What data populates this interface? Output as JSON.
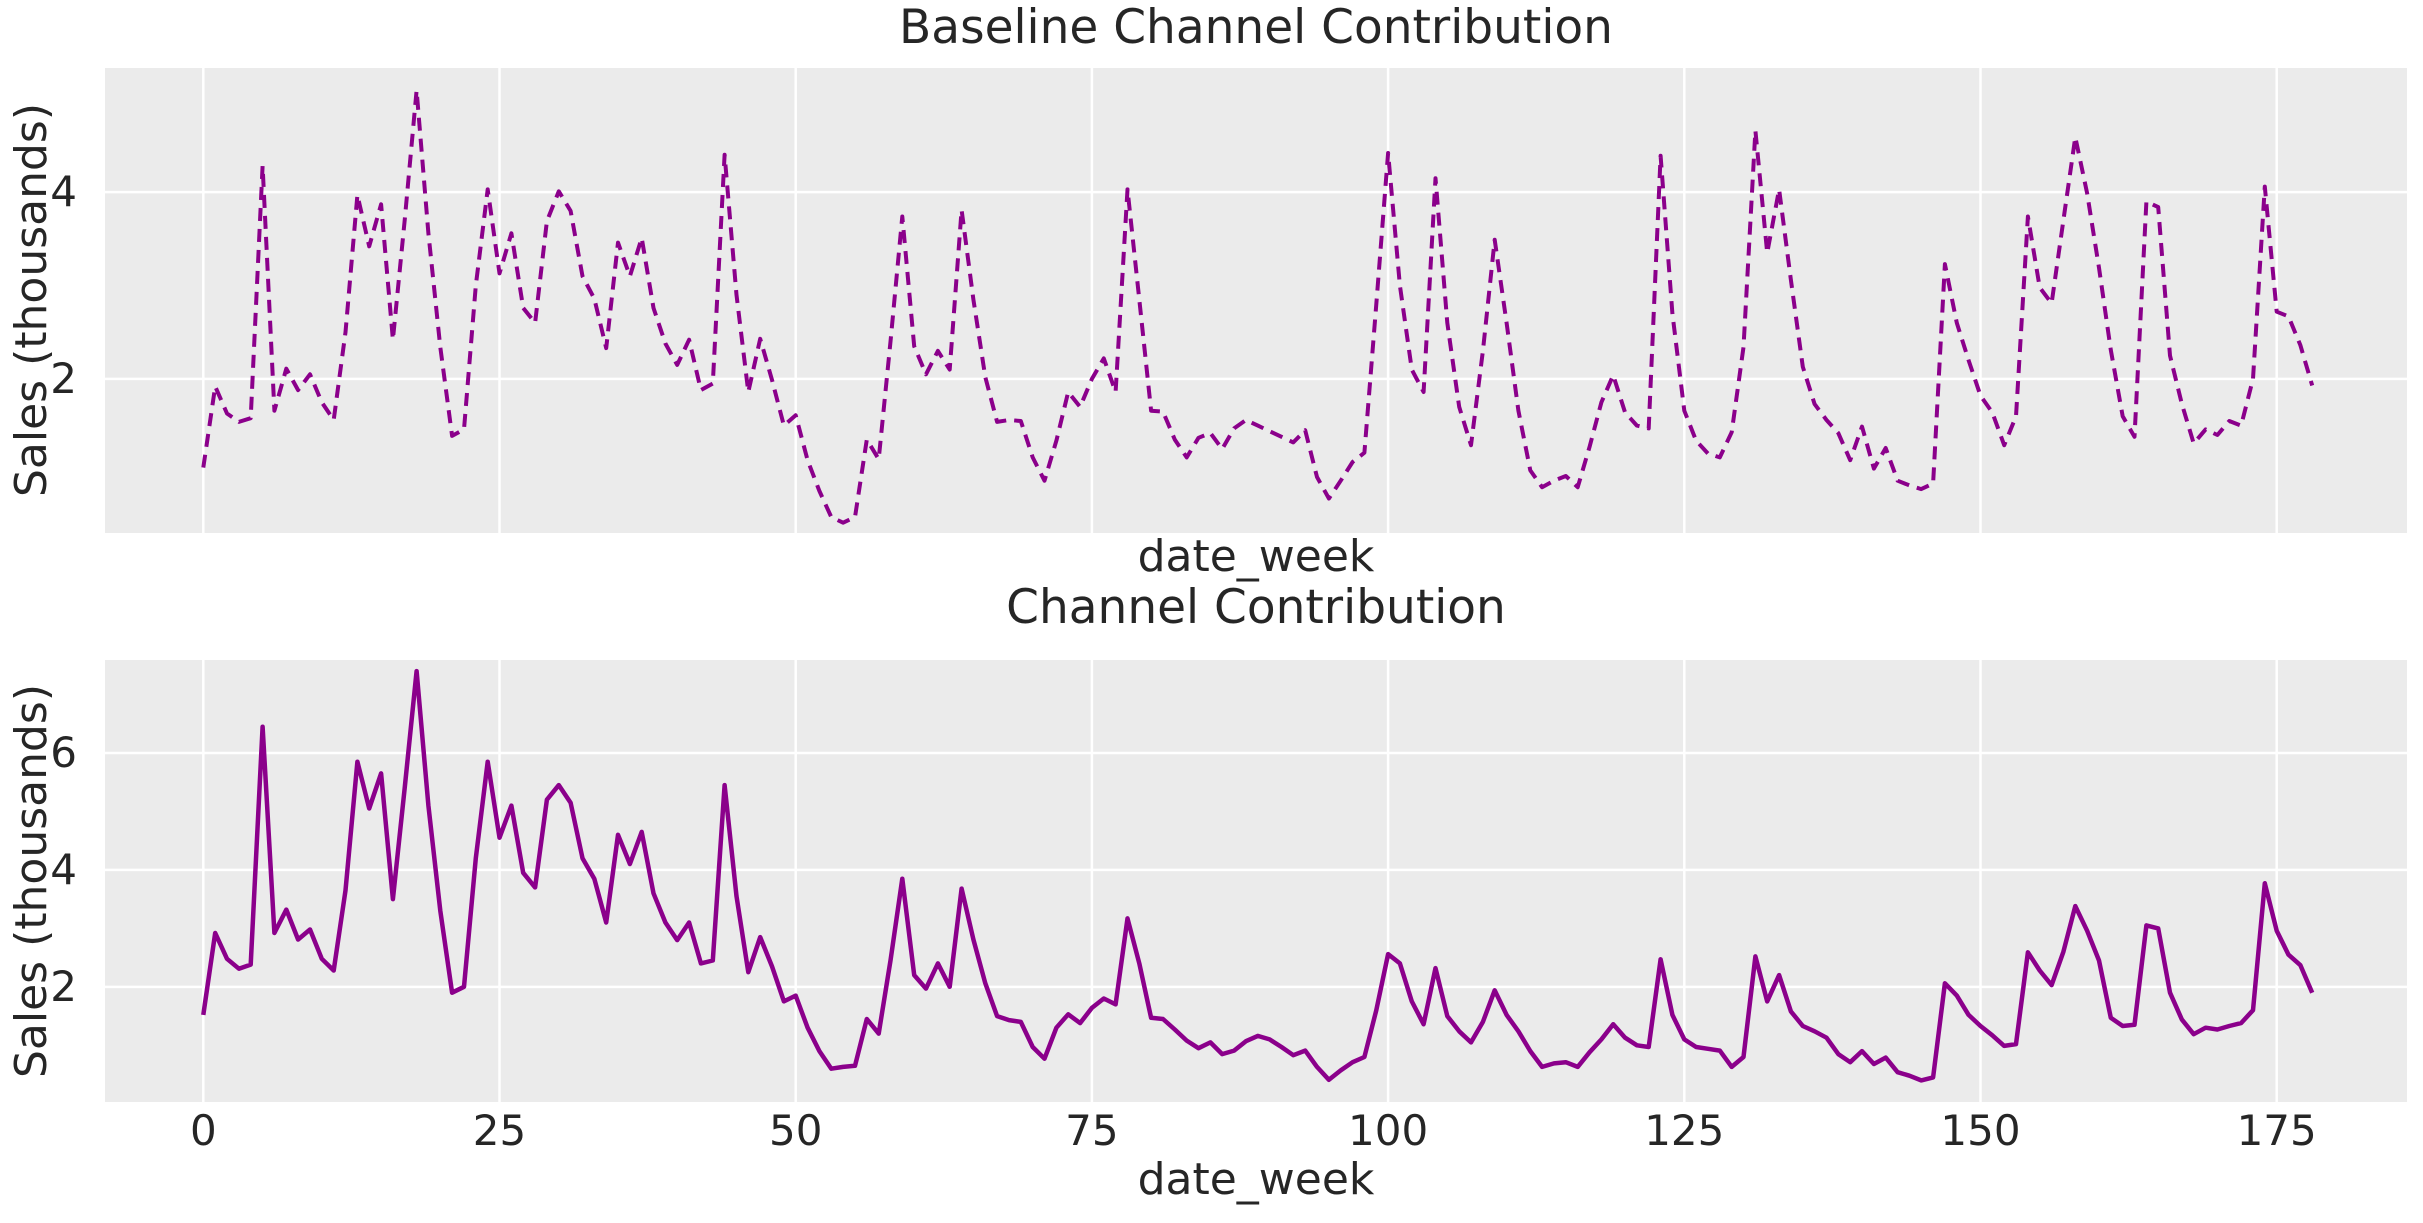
{
  "figure": {
    "background_color": "#ffffff",
    "plot_background_color": "#ebebeb",
    "grid_color": "#ffffff",
    "text_color": "#262626",
    "series_color": "#8b008b"
  },
  "chart_data": [
    {
      "type": "line",
      "title": "Baseline Channel Contribution",
      "xlabel": "date_week",
      "ylabel": "Sales (thousands)",
      "line_style": "dashed",
      "color": "#8b008b",
      "legend": null,
      "grid": true,
      "x_start": 0,
      "x_step": 1,
      "xlim": [
        -8.3,
        186.0
      ],
      "ylim": [
        0.35,
        5.33
      ],
      "yticks": [
        2,
        4
      ],
      "xticks": [],
      "grid_xticks": [
        0,
        25,
        50,
        75,
        100,
        125,
        150,
        175
      ],
      "values": [
        1.05,
        1.92,
        1.63,
        1.54,
        1.58,
        4.28,
        1.66,
        2.11,
        1.88,
        2.05,
        1.75,
        1.56,
        2.5,
        3.97,
        3.42,
        3.87,
        2.42,
        3.7,
        5.09,
        3.56,
        2.34,
        1.39,
        1.46,
        3.0,
        4.03,
        3.13,
        3.56,
        2.76,
        2.6,
        3.69,
        4.01,
        3.8,
        3.1,
        2.86,
        2.33,
        3.46,
        3.1,
        3.51,
        2.76,
        2.38,
        2.15,
        2.42,
        1.88,
        1.95,
        4.4,
        2.9,
        1.86,
        2.43,
        1.99,
        1.5,
        1.61,
        1.13,
        0.8,
        0.52,
        0.46,
        0.52,
        1.35,
        1.14,
        2.4,
        3.74,
        2.35,
        2.05,
        2.3,
        2.1,
        3.81,
        2.85,
        2.02,
        1.54,
        1.56,
        1.55,
        1.16,
        0.91,
        1.34,
        1.86,
        1.7,
        2.0,
        2.22,
        1.86,
        4.03,
        2.85,
        1.66,
        1.65,
        1.35,
        1.16,
        1.37,
        1.42,
        1.25,
        1.47,
        1.56,
        1.5,
        1.44,
        1.38,
        1.32,
        1.45,
        0.95,
        0.72,
        0.91,
        1.11,
        1.21,
        2.8,
        4.42,
        3.0,
        2.1,
        1.86,
        4.15,
        2.6,
        1.7,
        1.29,
        2.3,
        3.49,
        2.6,
        1.66,
        1.02,
        0.84,
        0.91,
        0.96,
        0.84,
        1.27,
        1.75,
        2.04,
        1.64,
        1.5,
        1.47,
        4.39,
        2.7,
        1.66,
        1.34,
        1.2,
        1.16,
        1.43,
        2.34,
        4.66,
        3.35,
        4.03,
        3.06,
        2.13,
        1.73,
        1.56,
        1.42,
        1.13,
        1.49,
        1.04,
        1.26,
        0.91,
        0.86,
        0.82,
        0.88,
        3.23,
        2.6,
        2.2,
        1.82,
        1.64,
        1.29,
        1.6,
        3.74,
        2.98,
        2.81,
        3.7,
        4.59,
        3.99,
        3.19,
        2.31,
        1.6,
        1.38,
        3.9,
        3.84,
        2.25,
        1.73,
        1.31,
        1.46,
        1.4,
        1.55,
        1.5,
        2.0,
        4.06,
        2.72,
        2.67,
        2.36,
        1.93
      ]
    },
    {
      "type": "line",
      "title": "Channel Contribution",
      "xlabel": "date_week",
      "ylabel": "Sales (thousands)",
      "line_style": "solid",
      "color": "#8b008b",
      "legend": null,
      "grid": true,
      "x_start": 0,
      "x_step": 1,
      "xlim": [
        -8.3,
        186.0
      ],
      "ylim": [
        0.03,
        7.59
      ],
      "yticks": [
        2,
        4,
        6
      ],
      "xticks": [
        0,
        25,
        50,
        75,
        100,
        125,
        150,
        175
      ],
      "grid_xticks": [
        0,
        25,
        50,
        75,
        100,
        125,
        150,
        175
      ],
      "values": [
        1.52,
        2.92,
        2.48,
        2.31,
        2.38,
        6.45,
        2.92,
        3.32,
        2.81,
        2.98,
        2.48,
        2.28,
        3.65,
        5.85,
        5.05,
        5.65,
        3.5,
        5.4,
        7.4,
        5.1,
        3.3,
        1.9,
        2.0,
        4.2,
        5.85,
        4.55,
        5.1,
        3.95,
        3.7,
        5.2,
        5.45,
        5.15,
        4.2,
        3.85,
        3.1,
        4.6,
        4.1,
        4.65,
        3.6,
        3.1,
        2.8,
        3.1,
        2.4,
        2.45,
        5.45,
        3.55,
        2.25,
        2.85,
        2.35,
        1.75,
        1.85,
        1.3,
        0.9,
        0.6,
        0.63,
        0.65,
        1.45,
        1.2,
        2.45,
        3.85,
        2.2,
        1.97,
        2.4,
        2.0,
        3.68,
        2.81,
        2.06,
        1.5,
        1.43,
        1.4,
        0.97,
        0.77,
        1.3,
        1.53,
        1.38,
        1.64,
        1.8,
        1.7,
        3.17,
        2.4,
        1.47,
        1.45,
        1.27,
        1.08,
        0.95,
        1.05,
        0.85,
        0.91,
        1.07,
        1.16,
        1.1,
        0.97,
        0.83,
        0.91,
        0.63,
        0.41,
        0.57,
        0.71,
        0.8,
        1.6,
        2.56,
        2.4,
        1.75,
        1.36,
        2.32,
        1.5,
        1.24,
        1.05,
        1.4,
        1.94,
        1.52,
        1.24,
        0.9,
        0.63,
        0.69,
        0.71,
        0.63,
        0.88,
        1.1,
        1.36,
        1.13,
        1.0,
        0.97,
        2.47,
        1.52,
        1.1,
        0.97,
        0.94,
        0.91,
        0.63,
        0.8,
        2.52,
        1.75,
        2.2,
        1.58,
        1.33,
        1.24,
        1.13,
        0.85,
        0.71,
        0.9,
        0.68,
        0.79,
        0.54,
        0.48,
        0.4,
        0.45,
        2.06,
        1.85,
        1.52,
        1.33,
        1.17,
        0.99,
        1.02,
        2.59,
        2.28,
        2.03,
        2.6,
        3.38,
        2.96,
        2.45,
        1.47,
        1.33,
        1.35,
        3.05,
        3.0,
        1.9,
        1.44,
        1.19,
        1.3,
        1.27,
        1.33,
        1.38,
        1.6,
        3.77,
        2.96,
        2.55,
        2.37,
        1.9
      ]
    }
  ]
}
